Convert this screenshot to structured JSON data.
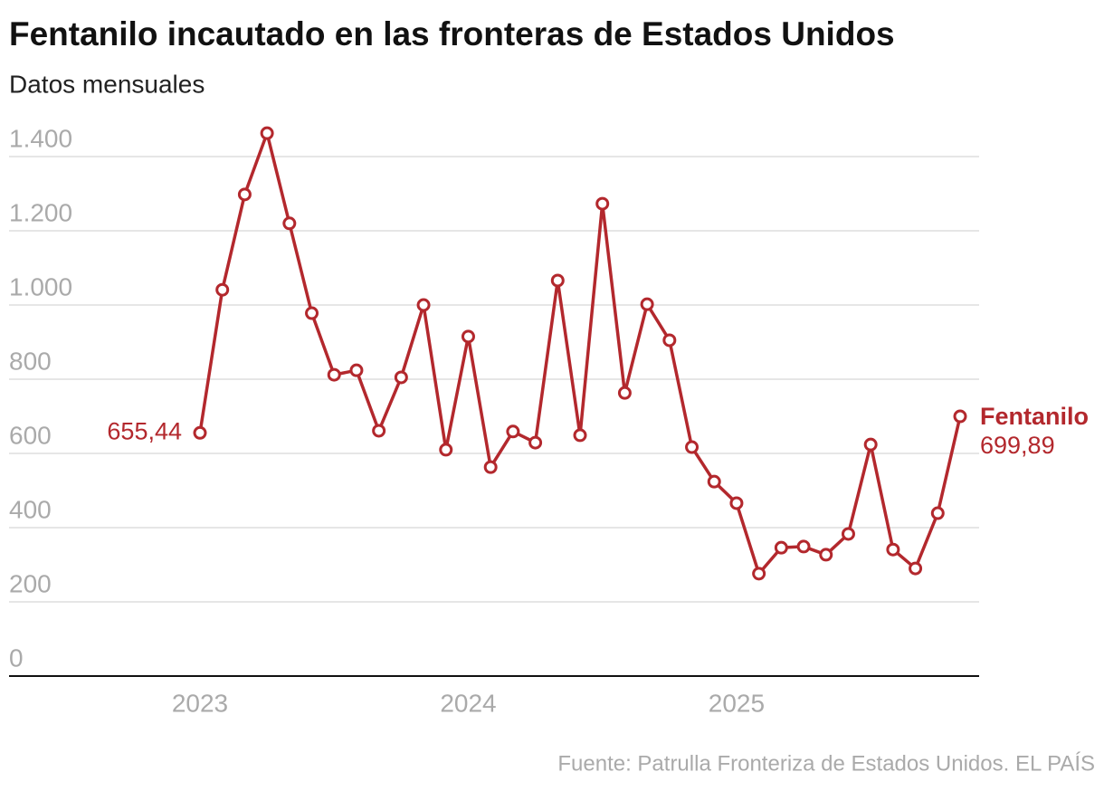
{
  "chart_data": {
    "type": "line",
    "title": "Fentanilo incautado en las fronteras de Estados Unidos",
    "subtitle": "Datos mensuales",
    "source": "Fuente: Patrulla Fronteriza de Estados Unidos. EL PAÍS",
    "categories": [
      "2023",
      null,
      null,
      null,
      null,
      null,
      null,
      null,
      null,
      null,
      null,
      null,
      "2024",
      null,
      null,
      null,
      null,
      null,
      null,
      null,
      null,
      null,
      null,
      null,
      "2025",
      null,
      null,
      null,
      null,
      null,
      null,
      null,
      null,
      null,
      null
    ],
    "series": [
      {
        "name": "Fentanilo",
        "color": "#b3282d",
        "values": [
          655.44,
          1041,
          1298,
          1463,
          1220,
          978,
          812,
          824,
          661,
          805,
          1000,
          610,
          915,
          563,
          659,
          629,
          1066,
          649,
          1273,
          763,
          1002,
          905,
          617,
          524,
          466,
          276,
          346,
          349,
          327,
          383,
          624,
          341,
          290,
          439,
          699.89
        ],
        "value_labels": [
          "655,44",
          null,
          null,
          null,
          null,
          null,
          null,
          null,
          null,
          null,
          null,
          null,
          null,
          null,
          null,
          null,
          null,
          null,
          null,
          null,
          null,
          null,
          null,
          null,
          null,
          null,
          null,
          null,
          null,
          null,
          null,
          null,
          null,
          null,
          "699,89"
        ]
      }
    ],
    "ylim": [
      0,
      1500
    ],
    "yticks": [
      0,
      200,
      400,
      600,
      800,
      {
        "value": 1000,
        "label": "1.000"
      },
      {
        "value": 1200,
        "label": "1.200"
      },
      {
        "value": 1400,
        "label": "1.400"
      }
    ],
    "grid": true
  }
}
